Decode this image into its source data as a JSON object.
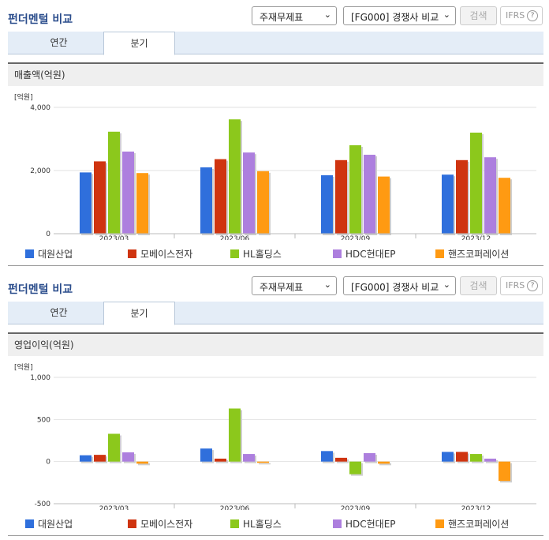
{
  "sections": [
    {
      "title": "펀더멘털 비교",
      "select_theme": "주재무제표",
      "select_peer": "[FG000] 경쟁사 비교",
      "search_label": "검색",
      "ifrs_label": "IFRS",
      "help_glyph": "?",
      "tabs": [
        "연간",
        "분기"
      ],
      "active_tab": "분기",
      "chart_title": "매출액(억원)"
    },
    {
      "title": "펀더멘털 비교",
      "select_theme": "주재무제표",
      "select_peer": "[FG000] 경쟁사 비교",
      "search_label": "검색",
      "ifrs_label": "IFRS",
      "help_glyph": "?",
      "tabs": [
        "연간",
        "분기"
      ],
      "active_tab": "분기",
      "chart_title": "영업이익(억원)"
    }
  ],
  "colors": {
    "대원산업": "#2f6fdc",
    "모베이스전자": "#cf3410",
    "HL홀딩스": "#8cc81c",
    "HDC현대EP": "#ad7fde",
    "핸즈코퍼레이션": "#ff9a12"
  },
  "chart_data": [
    {
      "type": "bar",
      "unit": "[억원]",
      "categories": [
        "2023/03",
        "2023/06",
        "2023/09",
        "2023/12"
      ],
      "ylim": [
        0,
        4000
      ],
      "ticks": [
        0,
        2000,
        4000
      ],
      "tick_labels": [
        "0",
        "2,000",
        "4,000"
      ],
      "series": [
        {
          "name": "대원산업",
          "values": [
            1940,
            2100,
            1850,
            1870
          ]
        },
        {
          "name": "모베이스전자",
          "values": [
            2290,
            2360,
            2330,
            2330
          ]
        },
        {
          "name": "HL홀딩스",
          "values": [
            3230,
            3620,
            2800,
            3200
          ]
        },
        {
          "name": "HDC현대EP",
          "values": [
            2600,
            2570,
            2500,
            2420
          ]
        },
        {
          "name": "핸즈코퍼레이션",
          "values": [
            1920,
            1980,
            1810,
            1770
          ]
        }
      ]
    },
    {
      "type": "bar",
      "unit": "[억원]",
      "categories": [
        "2023/03",
        "2023/06",
        "2023/09",
        "2023/12"
      ],
      "ylim": [
        -500,
        1000
      ],
      "ticks": [
        -500,
        0,
        500,
        1000
      ],
      "tick_labels": [
        "-500",
        "0",
        "500",
        "1,000"
      ],
      "series": [
        {
          "name": "대원산업",
          "values": [
            75,
            155,
            125,
            115
          ]
        },
        {
          "name": "모베이스전자",
          "values": [
            80,
            35,
            45,
            115
          ]
        },
        {
          "name": "HL홀딩스",
          "values": [
            330,
            630,
            -150,
            90
          ]
        },
        {
          "name": "HDC현대EP",
          "values": [
            110,
            90,
            100,
            35
          ]
        },
        {
          "name": "핸즈코퍼레이션",
          "values": [
            -25,
            -15,
            -25,
            -230
          ]
        }
      ]
    }
  ]
}
